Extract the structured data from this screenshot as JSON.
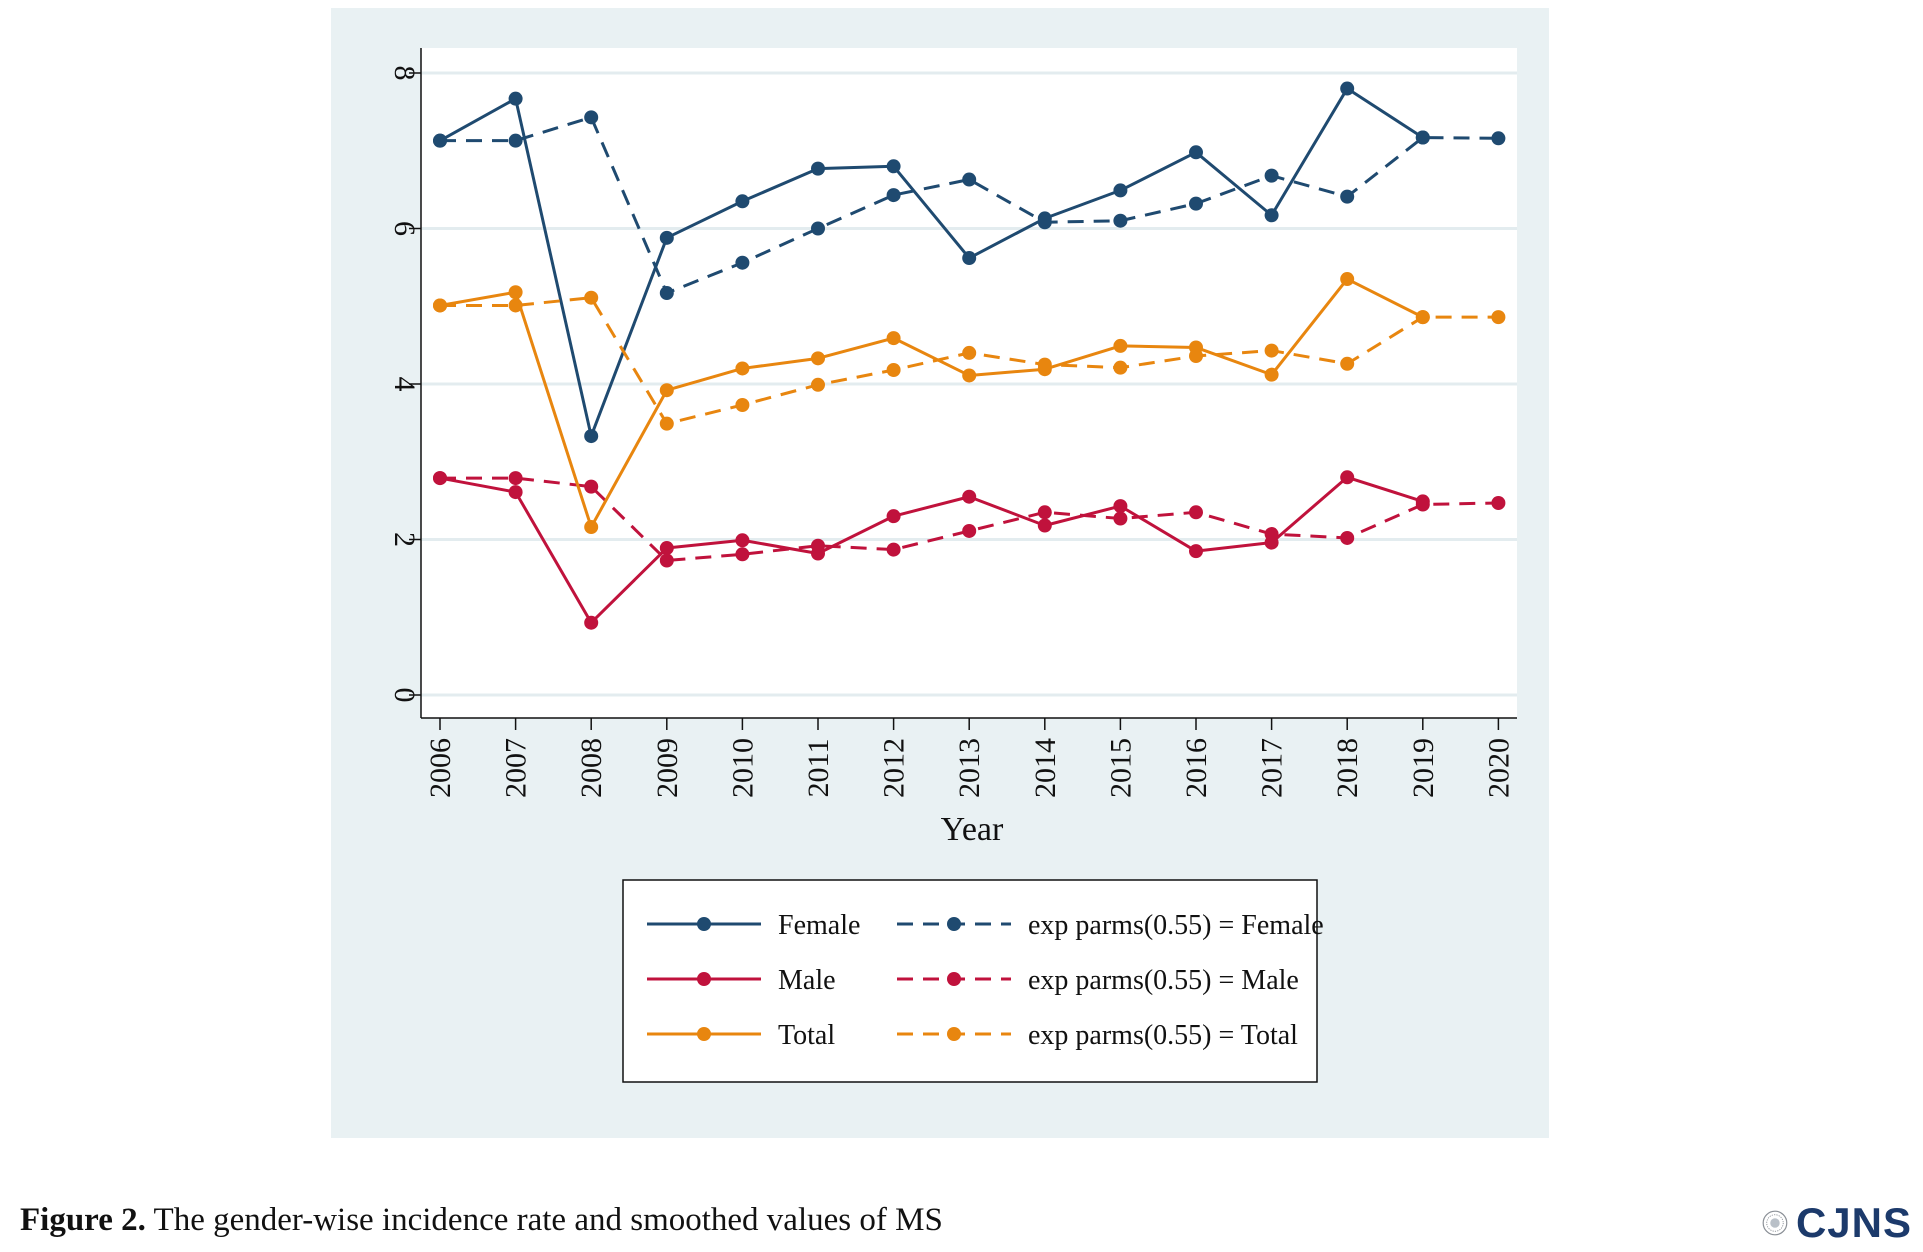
{
  "chart_data": {
    "type": "line",
    "title": "",
    "xlabel": "Year",
    "ylabel": "",
    "ylim": [
      0,
      8
    ],
    "yticks": [
      "0",
      "2",
      "4",
      "6",
      "8"
    ],
    "categories": [
      "2006",
      "2007",
      "2008",
      "2009",
      "2010",
      "2011",
      "2012",
      "2013",
      "2014",
      "2015",
      "2016",
      "2017",
      "2018",
      "2019",
      "2020"
    ],
    "grid": true,
    "legend_position": "bottom",
    "series": [
      {
        "name": "Female",
        "style": "solid",
        "color": "#1f4a70",
        "values": [
          7.13,
          7.67,
          3.33,
          5.88,
          6.35,
          6.77,
          6.8,
          5.62,
          6.13,
          6.49,
          6.98,
          6.17,
          7.8,
          7.17,
          null
        ]
      },
      {
        "name": "exp parms(0.55) = Female",
        "style": "dashed",
        "color": "#1f4a70",
        "values": [
          7.13,
          7.13,
          7.43,
          5.17,
          5.56,
          6.0,
          6.43,
          6.63,
          6.08,
          6.1,
          6.32,
          6.68,
          6.41,
          7.17,
          7.16
        ]
      },
      {
        "name": "Male",
        "style": "solid",
        "color": "#c0123c",
        "values": [
          2.79,
          2.61,
          0.93,
          1.89,
          1.99,
          1.82,
          2.3,
          2.55,
          2.18,
          2.43,
          1.85,
          1.96,
          2.8,
          2.49,
          null
        ]
      },
      {
        "name": "exp parms(0.55) = Male",
        "style": "dashed",
        "color": "#c0123c",
        "values": [
          2.79,
          2.79,
          2.68,
          1.73,
          1.81,
          1.92,
          1.87,
          2.11,
          2.35,
          2.27,
          2.35,
          2.07,
          2.02,
          2.45,
          2.47
        ]
      },
      {
        "name": "Total",
        "style": "solid",
        "color": "#e8860f",
        "values": [
          5.01,
          5.18,
          2.16,
          3.92,
          4.2,
          4.33,
          4.59,
          4.11,
          4.19,
          4.49,
          4.47,
          4.12,
          5.35,
          4.86,
          null
        ]
      },
      {
        "name": "exp parms(0.55) = Total",
        "style": "dashed",
        "color": "#e8860f",
        "values": [
          5.01,
          5.01,
          5.11,
          3.49,
          3.73,
          3.99,
          4.18,
          4.4,
          4.25,
          4.21,
          4.36,
          4.43,
          4.26,
          4.86,
          4.86
        ]
      }
    ]
  },
  "caption": {
    "label": "Figure 2.",
    "text": "The gender-wise incidence rate and smoothed values of MS"
  },
  "logo": {
    "text": "CJNS",
    "color": "#1c3a6b",
    "icon": "journal-seal-icon"
  }
}
